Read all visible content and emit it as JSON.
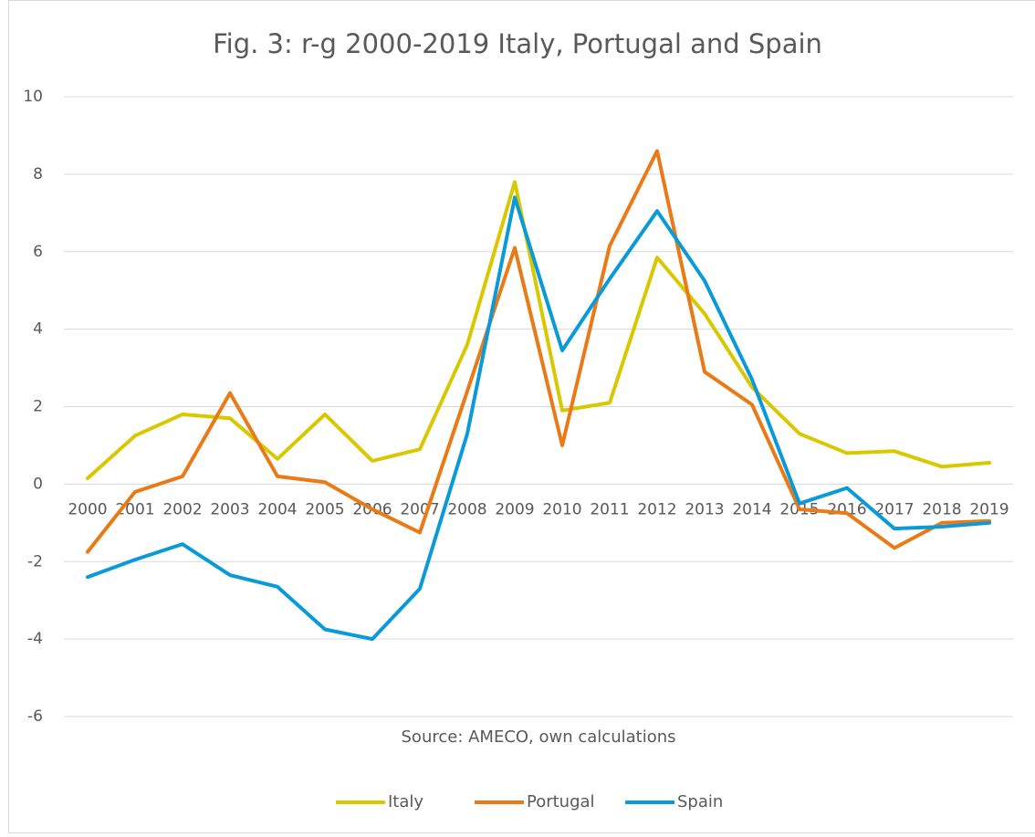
{
  "chart_data": {
    "type": "line",
    "title": "Fig. 3: r-g 2000-2019 Italy, Portugal and Spain",
    "annotation": "Source: AMECO, own calculations",
    "categories": [
      "2000",
      "2001",
      "2002",
      "2003",
      "2004",
      "2005",
      "2006",
      "2007",
      "2008",
      "2009",
      "2010",
      "2011",
      "2012",
      "2013",
      "2014",
      "2015",
      "2016",
      "2017",
      "2018",
      "2019"
    ],
    "series": [
      {
        "name": "Italy",
        "color": "#d9c800",
        "values": [
          0.15,
          1.25,
          1.8,
          1.7,
          0.65,
          1.8,
          0.6,
          0.9,
          3.6,
          7.8,
          1.9,
          2.1,
          5.85,
          4.4,
          2.5,
          1.3,
          0.8,
          0.85,
          0.45,
          0.55
        ]
      },
      {
        "name": "Portugal",
        "color": "#ea7a16",
        "values": [
          -1.75,
          -0.2,
          0.2,
          2.35,
          0.2,
          0.05,
          -0.65,
          -1.25,
          2.4,
          6.1,
          1.0,
          6.15,
          8.6,
          2.9,
          2.05,
          -0.65,
          -0.75,
          -1.65,
          -1.0,
          -0.95
        ]
      },
      {
        "name": "Spain",
        "color": "#0a9ad8",
        "values": [
          -2.4,
          -1.95,
          -1.55,
          -2.35,
          -2.65,
          -3.75,
          -4.0,
          -2.7,
          1.3,
          7.4,
          3.45,
          5.3,
          7.05,
          5.25,
          2.7,
          -0.5,
          -0.1,
          -1.15,
          -1.1,
          -1.0
        ]
      }
    ],
    "ylim": [
      -6,
      10
    ],
    "yticks": [
      -6,
      -4,
      -2,
      0,
      2,
      4,
      6,
      8,
      10
    ],
    "grid": true,
    "legend": "bottom"
  }
}
